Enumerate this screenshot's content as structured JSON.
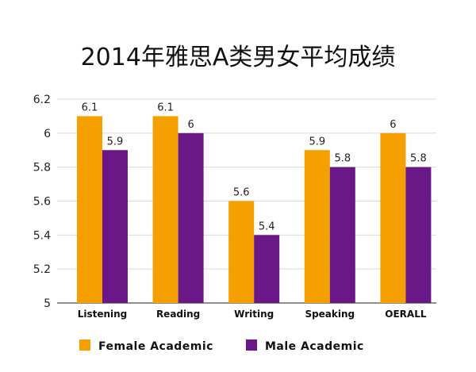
{
  "chart_data": {
    "type": "bar",
    "title": "2014年雅思A类男女平均成绩",
    "categories": [
      "Listening",
      "Reading",
      "Writing",
      "Speaking",
      "OERALL"
    ],
    "series": [
      {
        "name": "Female Academic",
        "values": [
          6.1,
          6.1,
          5.6,
          5.9,
          6.0
        ],
        "color": "#F5A000",
        "labels": [
          "6.1",
          "6.1",
          "5.6",
          "5.9",
          "6"
        ]
      },
      {
        "name": "Male Academic",
        "values": [
          5.9,
          6.0,
          5.4,
          5.8,
          5.8
        ],
        "color": "#6A1787",
        "labels": [
          "5.9",
          "6",
          "5.4",
          "5.8",
          "5.8"
        ]
      }
    ],
    "ylim": [
      5,
      6.2
    ],
    "yticks": [
      5,
      5.2,
      5.4,
      5.6,
      5.8,
      6,
      6.2
    ],
    "ytick_labels": [
      "5",
      "5.2",
      "5.4",
      "5.6",
      "5.8",
      "6",
      "6.2"
    ],
    "grid": true,
    "legend_position": "bottom-left",
    "xlabel": "",
    "ylabel": ""
  }
}
